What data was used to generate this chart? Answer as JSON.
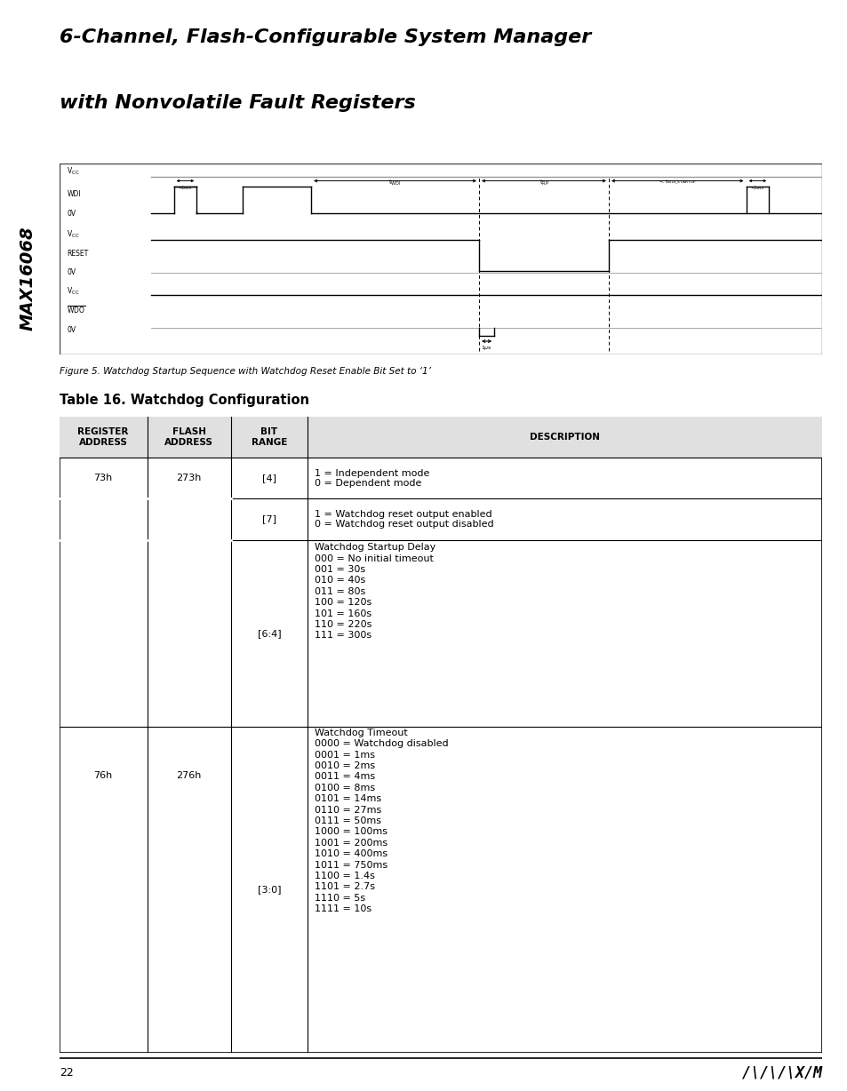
{
  "page_title_line1": "6-Channel, Flash-Configurable System Manager",
  "page_title_line2": "with Nonvolatile Fault Registers",
  "side_label": "MAX16068",
  "figure_caption": "Figure 5. Watchdog Startup Sequence with Watchdog Reset Enable Bit Set to ‘1’",
  "table_title": "Table 16. Watchdog Configuration",
  "table_headers": [
    "REGISTER\nADDRESS",
    "FLASH\nADDRESS",
    "BIT\nRANGE",
    "DESCRIPTION"
  ],
  "page_number": "22",
  "bg_color": "#ffffff",
  "table_border_color": "#000000"
}
